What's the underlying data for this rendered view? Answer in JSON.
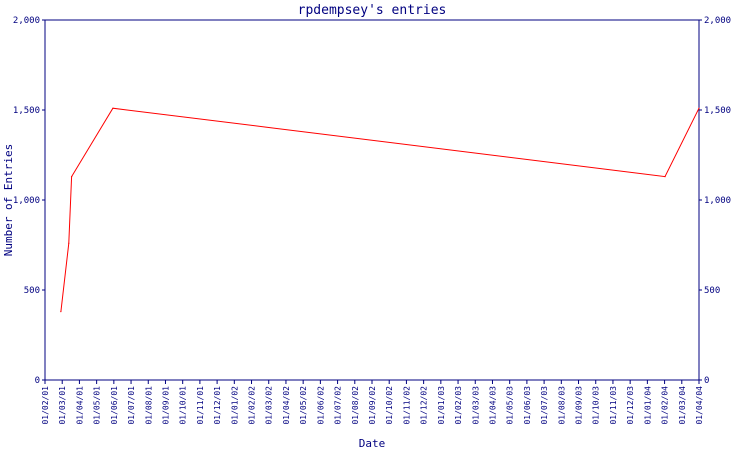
{
  "chart_data": {
    "type": "line",
    "title": "rpdempsey's entries",
    "xlabel": "Date",
    "ylabel": "Number of Entries",
    "ylim": [
      0,
      2000
    ],
    "y_ticks": [
      0,
      500,
      1000,
      1500,
      2000
    ],
    "y_tick_labels": [
      "0",
      "500",
      "1,000",
      "1,500",
      "2,000"
    ],
    "x_tick_labels": [
      "01/02/01",
      "01/03/01",
      "01/04/01",
      "01/05/01",
      "01/06/01",
      "01/07/01",
      "01/08/01",
      "01/09/01",
      "01/10/01",
      "01/11/01",
      "01/12/01",
      "01/01/02",
      "01/02/02",
      "01/03/02",
      "01/04/02",
      "01/05/02",
      "01/06/02",
      "01/07/02",
      "01/08/02",
      "01/09/02",
      "01/10/02",
      "01/11/02",
      "01/12/02",
      "01/01/03",
      "01/02/03",
      "01/03/03",
      "01/04/03",
      "01/05/03",
      "01/06/03",
      "01/07/03",
      "01/08/03",
      "01/09/03",
      "01/10/03",
      "01/11/03",
      "01/12/03",
      "01/01/04",
      "01/02/04",
      "01/03/04",
      "01/04/04"
    ],
    "x_range": [
      "2001-02-01",
      "2004-04-01"
    ],
    "grid": false,
    "colors": {
      "axis": "#000080",
      "text": "#000080",
      "line": "#ff0000"
    },
    "series": [
      {
        "points": [
          {
            "x": "2001-03-01",
            "y": 380
          },
          {
            "x": "2001-03-15",
            "y": 760
          },
          {
            "x": "2001-03-20",
            "y": 1130
          },
          {
            "x": "2001-06-01",
            "y": 1510
          },
          {
            "x": "2004-02-01",
            "y": 1130
          },
          {
            "x": "2004-04-01",
            "y": 1510
          }
        ]
      }
    ]
  }
}
